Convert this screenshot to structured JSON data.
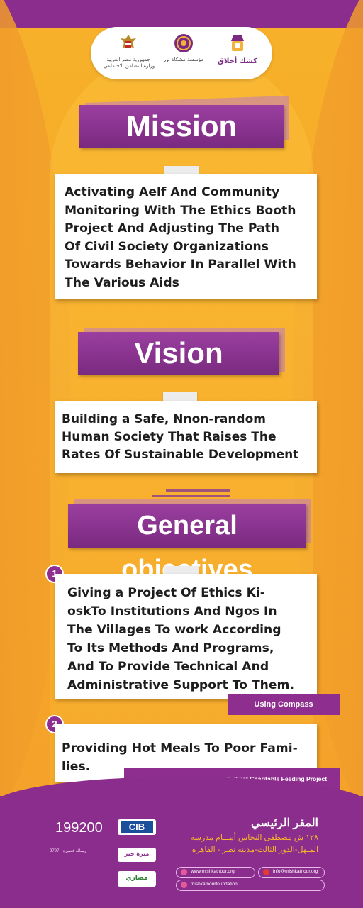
{
  "logos": {
    "gov_line1": "جمهورية مصر العربية",
    "gov_line2": "وزارة التضامن الاجتماعي",
    "foundation_line1": "مؤسسة مشكاة نور",
    "kiosk_name": "كشك أخلاق"
  },
  "mission": {
    "title": "Mission",
    "lines": [
      "Activating Aelf And Community",
      "Monitoring With The Ethics Booth",
      "Project And Adjusting The Path",
      "Of Civil Society Organizations",
      "Towards Behavior In Parallel With",
      "The Various Aids"
    ]
  },
  "vision": {
    "title": "Vision",
    "lines": [
      "Building a Safe, Nnon-random",
      "Human Society That Raises The",
      "Rates Of Sustainable Development"
    ]
  },
  "objectives": {
    "title": "General objectives",
    "items": [
      {
        "number": "1",
        "lines": [
          "Giving a Project Of Ethics Ki-",
          "oskTo Institutions And Ngos In",
          "The Villages To work According",
          "To Its Methods And Programs,",
          "And To Provide Technical And",
          "Administrative Support To Them."
        ],
        "tag": "Using Compass"
      },
      {
        "number": "2",
        "lines": [
          "Providing Hot Meals To Poor Fami-",
          "lies."
        ],
        "tag": "Using Chaste Homes - Tekkeh Mishkat Charitable Feeding Project"
      }
    ]
  },
  "footer": {
    "donation_number": "199200",
    "bank_logo": "CIB",
    "hq_title": "المقر الرئيسي",
    "address_line1": "١٢٨ ش مصطفى النحاس أمـــام مدرسة",
    "address_line2": "المنهل-الدور الثالث-مدينة نصر - القاهرة",
    "website": "www.mishkatnour.org",
    "email": "info@mishkatnour.org",
    "facebook": "mishkatnourfoundation",
    "meeza_line1": "رسالة قصيرة - 9797 -",
    "partner2_label": "مصاري",
    "meeza_label": "ميزة خير"
  },
  "colors": {
    "purple": "#8b2d8d",
    "orange": "#f6a928",
    "white": "#ffffff"
  }
}
